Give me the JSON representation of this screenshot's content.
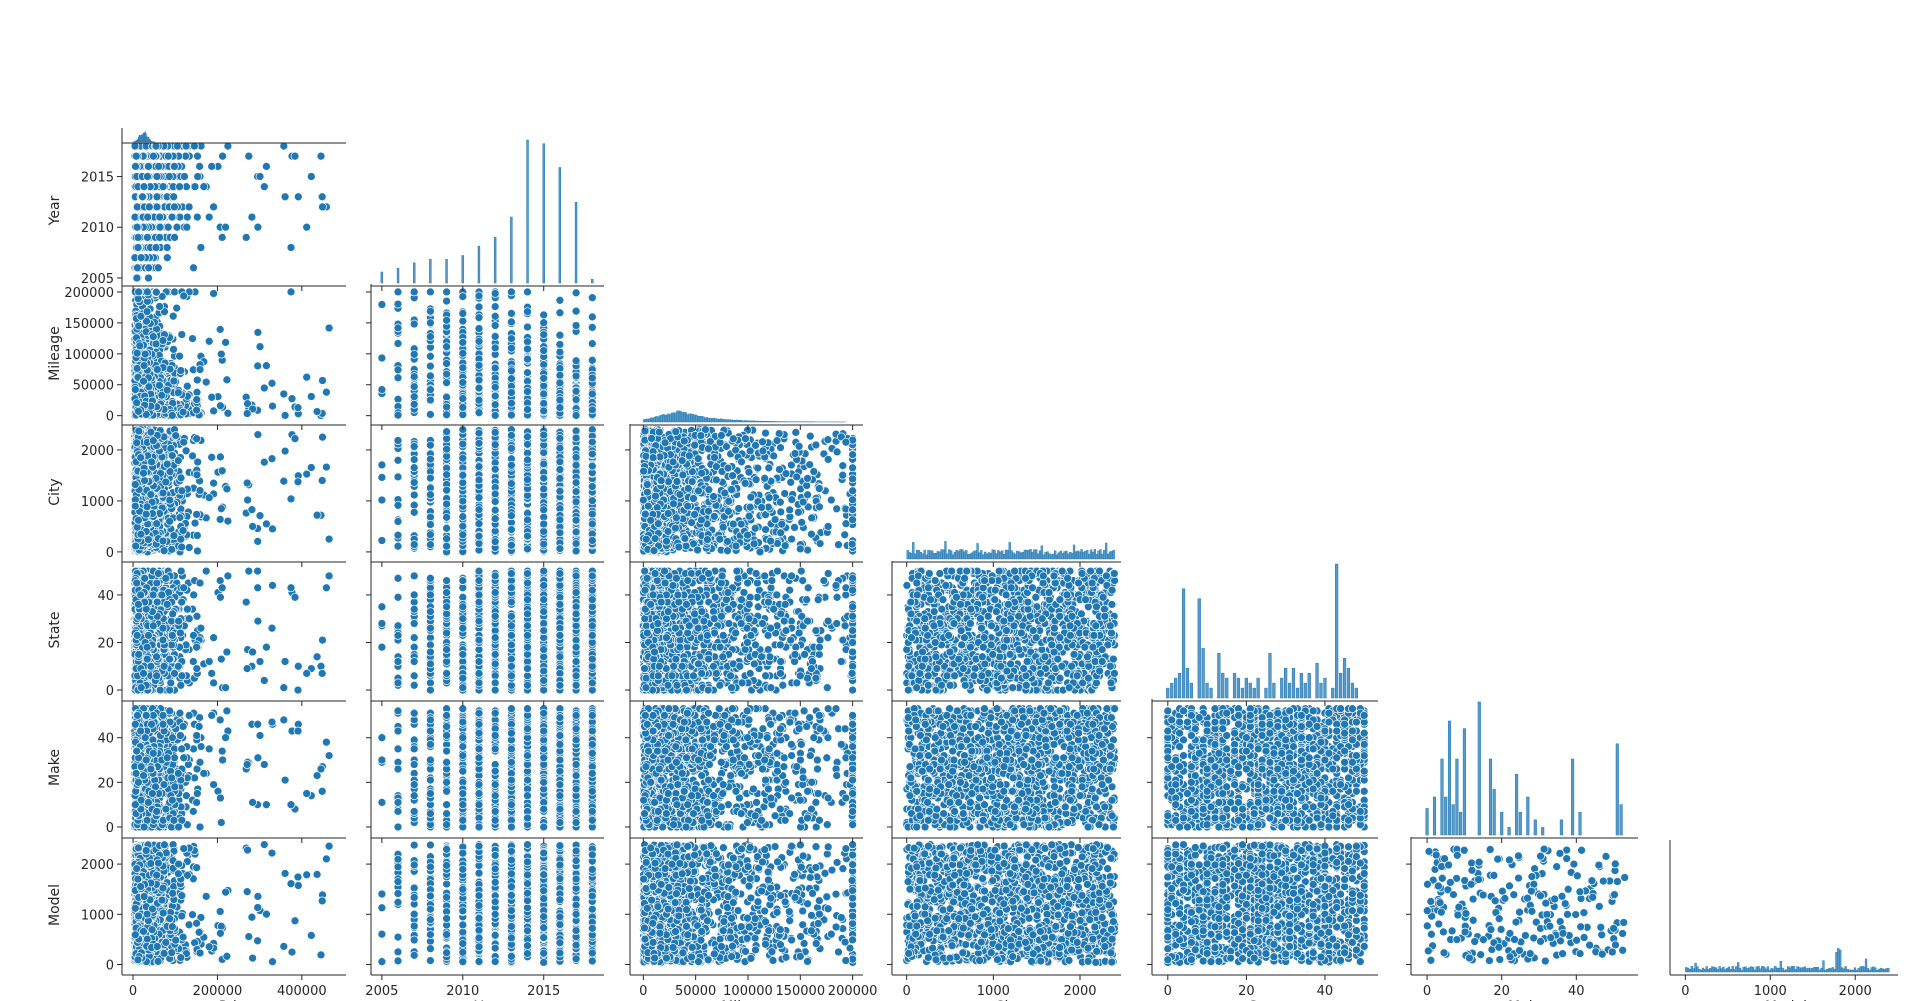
{
  "chart_data": {
    "type": "scatter",
    "subtype": "pairplot-lower-corner",
    "variables": [
      "Price",
      "Year",
      "Mileage",
      "City",
      "State",
      "Make",
      "Model"
    ],
    "axis_labels_x": [
      "Price",
      "Year",
      "Mileage",
      "City",
      "State",
      "Make",
      "Model"
    ],
    "axis_labels_y": [
      "Year",
      "Mileage",
      "City",
      "State",
      "Make",
      "Model"
    ],
    "ranges": {
      "Price": [
        -12000,
        500000
      ],
      "Year": [
        2004.7,
        2018.6
      ],
      "Mileage": [
        -7000,
        208000
      ],
      "City": [
        -100,
        2450
      ],
      "State": [
        -2.5,
        53
      ],
      "Make": [
        -2.7,
        56
      ],
      "Model": [
        -110,
        2480
      ]
    },
    "ticks": {
      "Price": {
        "values": [
          0,
          200000,
          400000
        ],
        "labels": [
          "0",
          "200000",
          "400000"
        ]
      },
      "Year": {
        "values": [
          2005,
          2010,
          2015
        ],
        "labels": [
          "2005",
          "2010",
          "2015"
        ]
      },
      "Mileage": {
        "values": [
          0,
          50000,
          100000,
          150000,
          200000
        ],
        "labels": [
          "0",
          "50000",
          "100000",
          "150000",
          "200000"
        ]
      },
      "City": {
        "values": [
          0,
          1000,
          2000
        ],
        "labels": [
          "0",
          "1000",
          "2000"
        ]
      },
      "State": {
        "values": [
          0,
          20,
          40
        ],
        "labels": [
          "0",
          "20",
          "40"
        ]
      },
      "Make": {
        "values": [
          0,
          20,
          40
        ],
        "labels": [
          "0",
          "20",
          "40"
        ]
      },
      "Model": {
        "values": [
          0,
          1000,
          2000
        ],
        "labels": [
          "0",
          "1000",
          "2000"
        ]
      }
    },
    "diagonal": "histogram",
    "histograms": {
      "Year": {
        "x": [
          2005,
          2006,
          2007,
          2008,
          2009,
          2010,
          2011,
          2012,
          2013,
          2014,
          2015,
          2016,
          2017,
          2018
        ],
        "counts": [
          6,
          8,
          11,
          13,
          13,
          15,
          20,
          25,
          36,
          78,
          76,
          63,
          44,
          2
        ]
      },
      "Make": {
        "x": [
          0,
          2,
          4,
          5,
          6,
          7,
          8,
          9,
          10,
          14,
          17,
          18,
          20,
          22,
          24,
          25,
          27,
          29,
          31,
          36,
          39,
          41,
          51,
          52
        ],
        "counts": [
          7,
          10,
          20,
          10,
          30,
          8,
          20,
          6,
          28,
          35,
          20,
          12,
          6,
          2,
          16,
          6,
          10,
          4,
          2,
          4,
          20,
          6,
          24,
          8
        ]
      },
      "State": {
        "x": [
          0,
          1,
          2,
          3,
          4,
          5,
          6,
          8,
          9,
          10,
          11,
          13,
          14,
          15,
          17,
          18,
          19,
          20,
          21,
          22,
          23,
          25,
          26,
          27,
          29,
          30,
          31,
          32,
          33,
          34,
          35,
          36,
          38,
          39,
          40,
          42,
          43,
          44,
          45,
          46,
          47,
          48
        ],
        "counts": [
          2,
          3,
          4,
          5,
          22,
          6,
          3,
          20,
          10,
          3,
          2,
          9,
          5,
          4,
          5,
          4,
          2,
          4,
          3,
          2,
          4,
          2,
          9,
          3,
          4,
          6,
          3,
          6,
          2,
          5,
          3,
          5,
          7,
          3,
          4,
          2,
          27,
          5,
          8,
          6,
          3,
          2
        ]
      },
      "Price": {
        "shape": "right-skewed, concentrated below 60000"
      },
      "Mileage": {
        "shape": "right-skewed, mode near 35000"
      },
      "City": {
        "shape": "roughly uniform 0–2400 with spikes"
      },
      "Model": {
        "shape": "roughly uniform 0–2400 with spike near 1800"
      }
    }
  }
}
